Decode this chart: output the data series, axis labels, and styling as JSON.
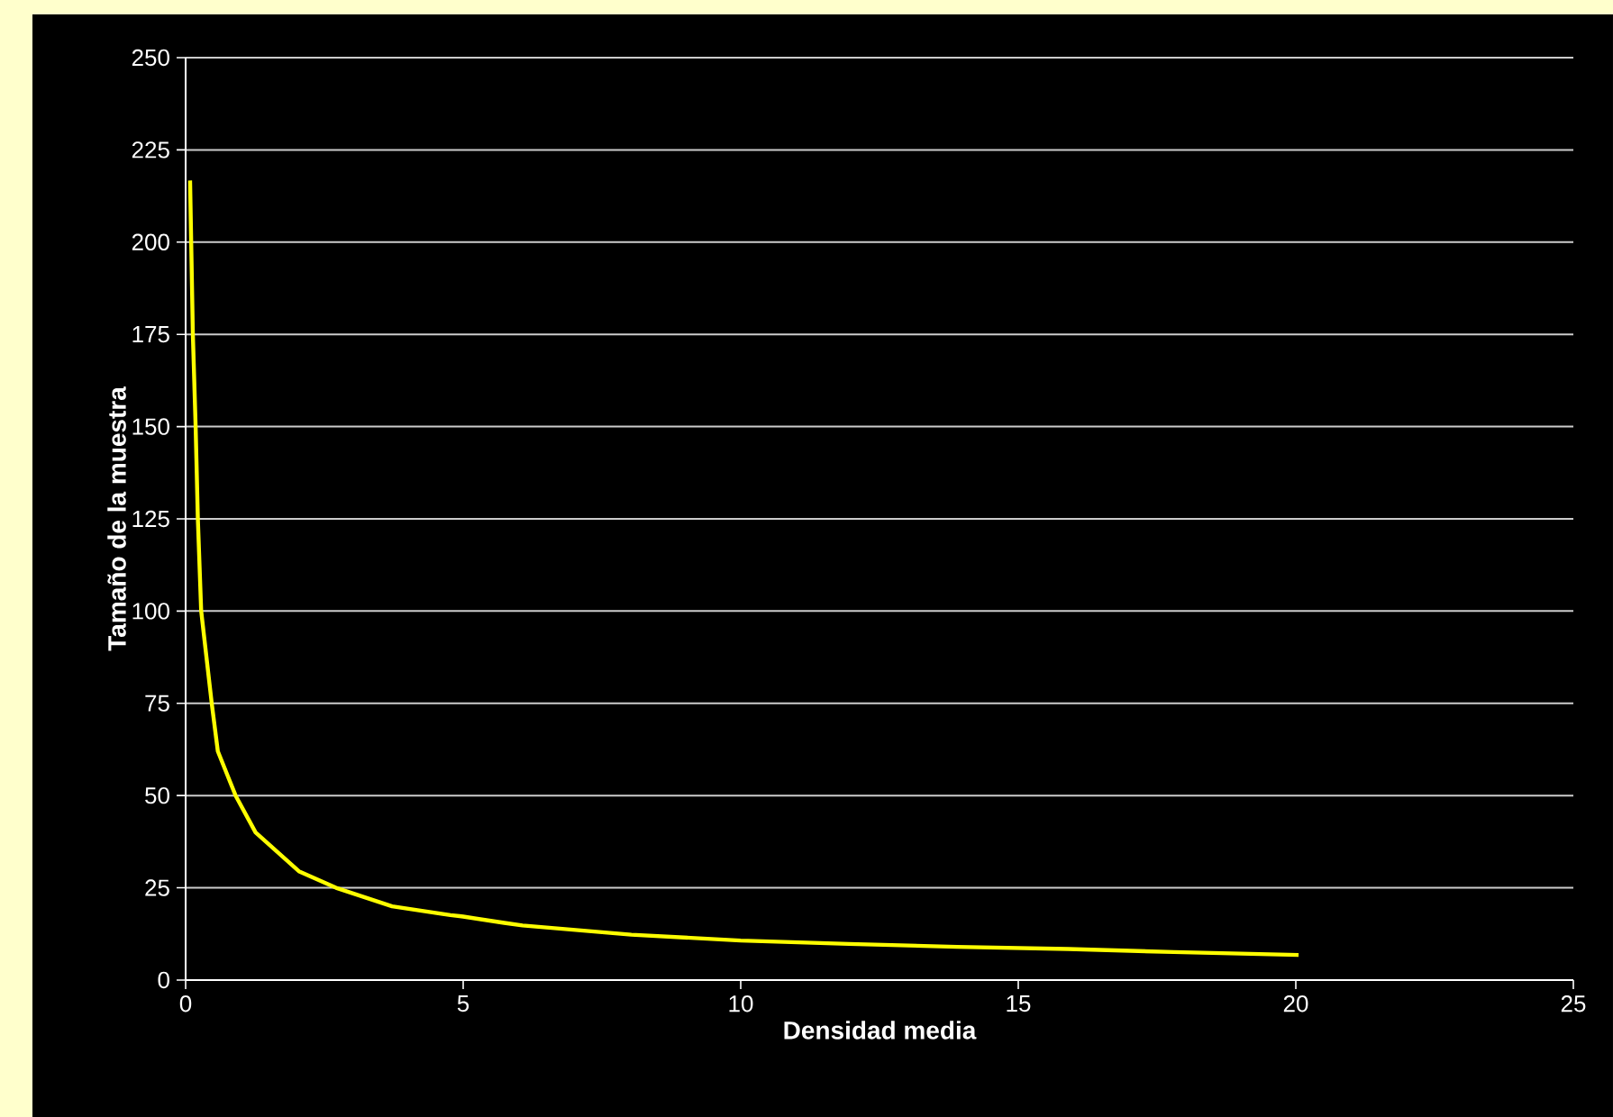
{
  "chart_data": {
    "type": "line",
    "xlabel": "Densidad media",
    "ylabel": "Tamaño de la muestra",
    "x": [
      0.08,
      0.13,
      0.18,
      0.22,
      0.28,
      0.47,
      0.58,
      0.9,
      1.26,
      2.04,
      2.71,
      3.72,
      4.77,
      5.0,
      5.74,
      6.07,
      8.03,
      10.0,
      11.95,
      13.9,
      15.9,
      17.8,
      20.05
    ],
    "values": [
      216.7,
      175,
      150,
      125,
      100,
      75,
      62,
      50,
      40,
      29.5,
      25,
      20,
      17.6,
      17.2,
      15.5,
      14.8,
      12.3,
      10.7,
      9.8,
      9.0,
      8.4,
      7.6,
      6.8
    ],
    "color": "#ffff00",
    "xlim": [
      0,
      25
    ],
    "ylim": [
      0,
      250
    ],
    "xticks": [
      0,
      5,
      10,
      15,
      20,
      25
    ],
    "yticks": [
      0,
      25,
      50,
      75,
      100,
      125,
      150,
      175,
      200,
      225,
      250
    ],
    "grid": "y"
  }
}
